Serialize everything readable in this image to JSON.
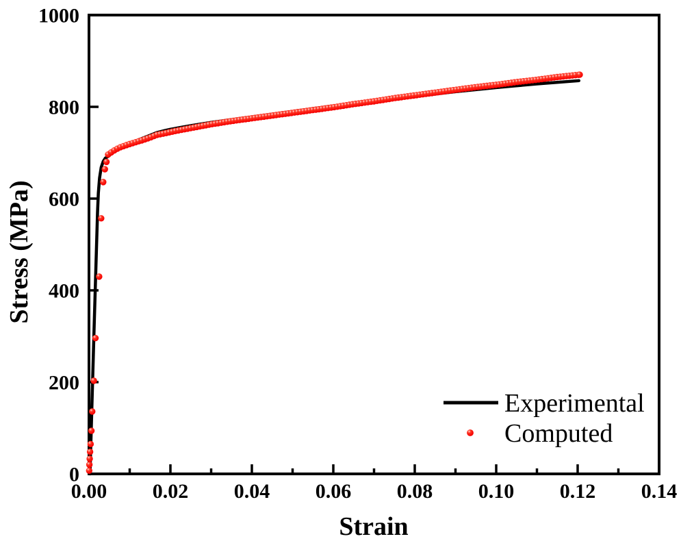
{
  "figure": {
    "background": "#ffffff",
    "axis_color": "#000000"
  },
  "chart_data": {
    "type": "line",
    "title": "",
    "xlabel": "Strain",
    "ylabel": "Stress (MPa)",
    "xlim": [
      0,
      0.14
    ],
    "ylim": [
      0,
      1000
    ],
    "grid": false,
    "x_tick_labels": [
      "0.00",
      "0.02",
      "0.04",
      "0.06",
      "0.08",
      "0.10",
      "0.12",
      "0.14"
    ],
    "x_minor_ticks": [
      0.01,
      0.03,
      0.05,
      0.07,
      0.09,
      0.11,
      0.13
    ],
    "y_tick_labels": [
      "0",
      "200",
      "400",
      "600",
      "800",
      "1000"
    ],
    "legend": {
      "position": "lower-right",
      "entries": [
        {
          "label": "Experimental",
          "type": "line",
          "color": "#000000"
        },
        {
          "label": "Computed",
          "type": "marker",
          "color": "#f50000"
        }
      ]
    },
    "series": [
      {
        "name": "Experimental",
        "type": "line",
        "color": "#000000",
        "points": [
          [
            0.00025,
            0
          ],
          [
            0.0012,
            300
          ],
          [
            0.0018,
            480
          ],
          [
            0.0021,
            570
          ],
          [
            0.0023,
            612
          ],
          [
            0.0026,
            645
          ],
          [
            0.003,
            668
          ],
          [
            0.0035,
            681
          ],
          [
            0.004,
            688
          ],
          [
            0.0047,
            692
          ],
          [
            0.0055,
            698
          ],
          [
            0.0065,
            704
          ],
          [
            0.008,
            711
          ],
          [
            0.0095,
            718
          ],
          [
            0.011,
            724
          ],
          [
            0.013,
            731
          ],
          [
            0.015,
            738
          ],
          [
            0.0167,
            744
          ],
          [
            0.0185,
            748
          ],
          [
            0.02,
            751
          ],
          [
            0.0225,
            755
          ],
          [
            0.025,
            759
          ],
          [
            0.03,
            766
          ],
          [
            0.035,
            772
          ],
          [
            0.04,
            778
          ],
          [
            0.045,
            784
          ],
          [
            0.05,
            790
          ],
          [
            0.06,
            802
          ],
          [
            0.07,
            813
          ],
          [
            0.08,
            823
          ],
          [
            0.09,
            833
          ],
          [
            0.1,
            842
          ],
          [
            0.11,
            850
          ],
          [
            0.1203,
            857
          ]
        ]
      },
      {
        "name": "Computed",
        "type": "scatter",
        "color": "#f50000",
        "marker": "sphere",
        "low_strain_points": [
          [
            5e-05,
            7
          ],
          [
            0.0001,
            20
          ],
          [
            0.00018,
            33
          ],
          [
            0.00027,
            48
          ],
          [
            0.0004,
            65
          ],
          [
            0.0006,
            94
          ],
          [
            0.0008,
            136
          ],
          [
            0.0012,
            203
          ],
          [
            0.0016,
            296
          ],
          [
            0.0025,
            430
          ],
          [
            0.003,
            557
          ],
          [
            0.0035,
            636
          ],
          [
            0.0039,
            664
          ],
          [
            0.0043,
            680
          ]
        ],
        "curve_anchor_points": [
          [
            0.0047,
            696
          ],
          [
            0.0055,
            701
          ],
          [
            0.006,
            704
          ],
          [
            0.007,
            709
          ],
          [
            0.008,
            713
          ],
          [
            0.009,
            716
          ],
          [
            0.01,
            719
          ],
          [
            0.0115,
            723
          ],
          [
            0.013,
            727
          ],
          [
            0.015,
            733
          ],
          [
            0.0167,
            739
          ],
          [
            0.019,
            743
          ],
          [
            0.021,
            747
          ],
          [
            0.024,
            752
          ],
          [
            0.027,
            757
          ],
          [
            0.03,
            762
          ],
          [
            0.035,
            769
          ],
          [
            0.04,
            775
          ],
          [
            0.045,
            781
          ],
          [
            0.05,
            787
          ],
          [
            0.055,
            793
          ],
          [
            0.06,
            799
          ],
          [
            0.065,
            806
          ],
          [
            0.07,
            812
          ],
          [
            0.075,
            819
          ],
          [
            0.08,
            825
          ],
          [
            0.085,
            831
          ],
          [
            0.09,
            837
          ],
          [
            0.095,
            843
          ],
          [
            0.1,
            848
          ],
          [
            0.105,
            854
          ],
          [
            0.11,
            859
          ],
          [
            0.115,
            865
          ],
          [
            0.1205,
            870
          ]
        ],
        "marker_strain_step": 0.00075,
        "marker_strain_range": [
          0.0047,
          0.1205
        ]
      }
    ]
  }
}
